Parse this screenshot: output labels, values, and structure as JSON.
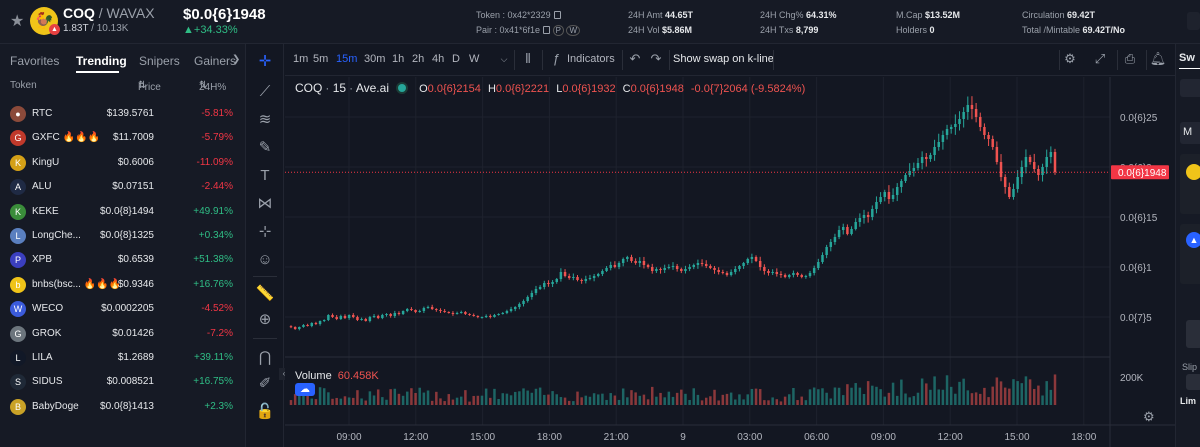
{
  "header": {
    "pair_base": "COQ",
    "pair_quote": " / WAVAX",
    "sub_left": "1.83T",
    "sub_right": " / 10.13K",
    "price": "$0.0{6}1948",
    "change": "+34.33%",
    "token_label": "Token : ",
    "token_value": "0x42*2329",
    "pair_label": "Pair : ",
    "pair_value": "0x41*6f1e",
    "amt_label": "24H Amt ",
    "amt_value": "44.65T",
    "vol_label": "24H Vol ",
    "vol_value": "$5.86M",
    "chg_label": "24H Chg% ",
    "chg_value": "64.31%",
    "txs_label": "24H Txs ",
    "txs_value": "8,799",
    "mcap_label": "M.Cap ",
    "mcap_value": "$13.52M",
    "holders_label": "Holders ",
    "holders_value": "0",
    "circ_label": "Circulation ",
    "circ_value": "69.42T",
    "total_label": "Total /Mintable ",
    "total_value": "69.42T/No",
    "chain_icons": [
      "P",
      "W"
    ]
  },
  "left_panel": {
    "tabs": [
      "Favorites",
      "Trending",
      "Snipers",
      "Gainers"
    ],
    "active_tab": "Trending",
    "col_token": "Token",
    "col_price": "Price",
    "col_change": "24H%",
    "rows": [
      {
        "name": "RTC",
        "price": "$139.5761",
        "change": "-5.81%",
        "dir": "neg",
        "color": "#8b4a3a",
        "glyph": "●"
      },
      {
        "name": "GXFC 🔥🔥🔥",
        "price": "$11.7009",
        "change": "-5.79%",
        "dir": "neg",
        "color": "#c0392b",
        "glyph": "G"
      },
      {
        "name": "KingU",
        "price": "$0.6006",
        "change": "-11.09%",
        "dir": "neg",
        "color": "#d4a017",
        "glyph": "K"
      },
      {
        "name": "ALU",
        "price": "$0.07151",
        "change": "-2.44%",
        "dir": "neg",
        "color": "#1f2a44",
        "glyph": "A"
      },
      {
        "name": "KEKE",
        "price": "$0.0{8}1494",
        "change": "+49.91%",
        "dir": "pos",
        "color": "#3a8d3a",
        "glyph": "K"
      },
      {
        "name": "LongChe...",
        "price": "$0.0{8}1325",
        "change": "+0.34%",
        "dir": "pos",
        "color": "#5a7fbf",
        "glyph": "L"
      },
      {
        "name": "XPB",
        "price": "$0.6539",
        "change": "+51.38%",
        "dir": "pos",
        "color": "#3b3fbf",
        "glyph": "P"
      },
      {
        "name": "bnbs(bsc... 🔥🔥🔥",
        "price": "$0.9346",
        "change": "+16.76%",
        "dir": "pos",
        "color": "#f0c419",
        "glyph": "b"
      },
      {
        "name": "WECO",
        "price": "$0.0002205",
        "change": "-4.52%",
        "dir": "neg",
        "color": "#3b5bdb",
        "glyph": "W"
      },
      {
        "name": "GROK",
        "price": "$0.01426",
        "change": "-7.2%",
        "dir": "neg",
        "color": "#6c757d",
        "glyph": "G"
      },
      {
        "name": "LILA",
        "price": "$1.2689",
        "change": "+39.11%",
        "dir": "pos",
        "color": "#111827",
        "glyph": "L"
      },
      {
        "name": "SIDUS",
        "price": "$0.008521",
        "change": "+16.75%",
        "dir": "pos",
        "color": "#1f2937",
        "glyph": "S"
      },
      {
        "name": "BabyDoge",
        "price": "$0.0{8}1413",
        "change": "+2.3%",
        "dir": "pos",
        "color": "#c9a227",
        "glyph": "B"
      }
    ]
  },
  "toolbar": {
    "timeframes": [
      "1m",
      "5m",
      "15m",
      "30m",
      "1h",
      "2h",
      "4h",
      "D",
      "W"
    ],
    "active_timeframe": "15m",
    "indicators_label": "Indicators",
    "swap_label": "Show swap on k-line"
  },
  "legend": {
    "symbol": "COQ",
    "interval": "15",
    "source": "Ave.ai",
    "o": "0.0{6}2154",
    "h": "0.0{6}2221",
    "l": "0.0{6}1932",
    "c": "0.0{6}1948",
    "change": "-0.0{7}2064 (-9.5824%)",
    "o_label": "O",
    "h_label": "H",
    "l_label": "L",
    "c_label": "C"
  },
  "volume_legend": {
    "label": "Volume",
    "value": "60.458K"
  },
  "colors": {
    "up": "#26a69a",
    "down": "#ef5350",
    "accent": "#2962ff",
    "price_tag": "#f23645"
  },
  "chart_data": {
    "type": "candlestick",
    "y_ticks": [
      "0.0{6}25",
      "0.0{6}2",
      "0.0{6}15",
      "0.0{6}1",
      "0.0{7}5"
    ],
    "y_tick_values": [
      2.5e-07,
      2e-07,
      1.5e-07,
      1e-07,
      5e-08
    ],
    "last_price_label": "0.0{6}1948",
    "last_price": 1.948e-07,
    "ylim": [
      2e-08,
      2.8e-07
    ],
    "volume_tick": "200K",
    "x_ticks": [
      "09:00",
      "12:00",
      "15:00",
      "18:00",
      "21:00",
      "9",
      "03:00",
      "06:00",
      "09:00",
      "12:00",
      "15:00",
      "18:00"
    ],
    "close_series": [
      0.04,
      0.038,
      0.04,
      0.042,
      0.041,
      0.044,
      0.043,
      0.046,
      0.047,
      0.052,
      0.05,
      0.048,
      0.051,
      0.049,
      0.052,
      0.05,
      0.047,
      0.048,
      0.046,
      0.05,
      0.051,
      0.049,
      0.052,
      0.053,
      0.051,
      0.054,
      0.053,
      0.056,
      0.058,
      0.057,
      0.055,
      0.056,
      0.059,
      0.06,
      0.058,
      0.057,
      0.056,
      0.055,
      0.054,
      0.053,
      0.054,
      0.055,
      0.053,
      0.052,
      0.051,
      0.05,
      0.05,
      0.051,
      0.05,
      0.052,
      0.053,
      0.054,
      0.056,
      0.058,
      0.06,
      0.063,
      0.066,
      0.07,
      0.074,
      0.078,
      0.08,
      0.084,
      0.083,
      0.085,
      0.088,
      0.095,
      0.091,
      0.089,
      0.09,
      0.087,
      0.086,
      0.088,
      0.089,
      0.091,
      0.093,
      0.096,
      0.099,
      0.102,
      0.1,
      0.104,
      0.108,
      0.11,
      0.106,
      0.104,
      0.106,
      0.102,
      0.1,
      0.096,
      0.098,
      0.097,
      0.099,
      0.1,
      0.101,
      0.098,
      0.096,
      0.098,
      0.1,
      0.102,
      0.104,
      0.103,
      0.101,
      0.099,
      0.097,
      0.095,
      0.094,
      0.092,
      0.095,
      0.098,
      0.101,
      0.104,
      0.108,
      0.11,
      0.106,
      0.1,
      0.096,
      0.094,
      0.095,
      0.093,
      0.092,
      0.09,
      0.092,
      0.094,
      0.092,
      0.09,
      0.091,
      0.094,
      0.099,
      0.105,
      0.112,
      0.12,
      0.125,
      0.13,
      0.137,
      0.14,
      0.133,
      0.138,
      0.145,
      0.149,
      0.152,
      0.15,
      0.158,
      0.165,
      0.17,
      0.175,
      0.168,
      0.172,
      0.18,
      0.186,
      0.192,
      0.196,
      0.199,
      0.204,
      0.21,
      0.208,
      0.212,
      0.22,
      0.225,
      0.232,
      0.238,
      0.24,
      0.243,
      0.248,
      0.255,
      0.262,
      0.258,
      0.25,
      0.24,
      0.232,
      0.228,
      0.22,
      0.205,
      0.19,
      0.18,
      0.17,
      0.178,
      0.19,
      0.2,
      0.21,
      0.205,
      0.198,
      0.192,
      0.2,
      0.21,
      0.215,
      0.1948
    ]
  }
}
